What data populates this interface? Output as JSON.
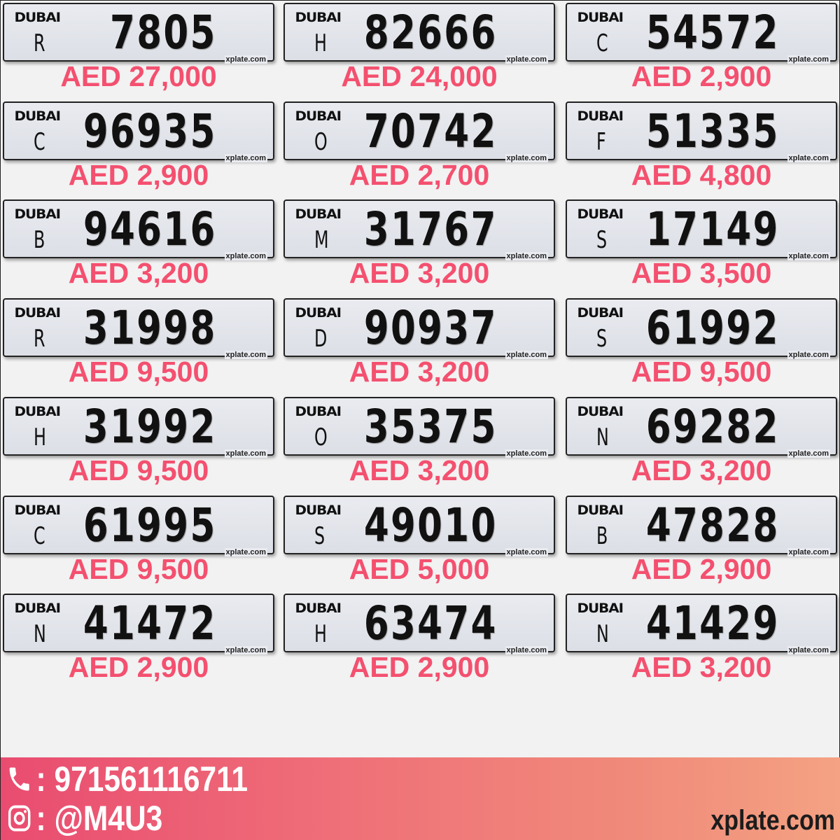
{
  "plates": [
    {
      "emirate": "DUBAI",
      "code": "R",
      "number": "7805",
      "site": "xplate.com",
      "price": "AED 27,000"
    },
    {
      "emirate": "DUBAI",
      "code": "H",
      "number": "82666",
      "site": "xplate.com",
      "price": "AED 24,000"
    },
    {
      "emirate": "DUBAI",
      "code": "C",
      "number": "54572",
      "site": "xplate.com",
      "price": "AED 2,900"
    },
    {
      "emirate": "DUBAI",
      "code": "C",
      "number": "96935",
      "site": "xplate.com",
      "price": "AED 2,900"
    },
    {
      "emirate": "DUBAI",
      "code": "O",
      "number": "70742",
      "site": "xplate.com",
      "price": "AED 2,700"
    },
    {
      "emirate": "DUBAI",
      "code": "F",
      "number": "51335",
      "site": "xplate.com",
      "price": "AED 4,800"
    },
    {
      "emirate": "DUBAI",
      "code": "B",
      "number": "94616",
      "site": "xplate.com",
      "price": "AED 3,200"
    },
    {
      "emirate": "DUBAI",
      "code": "M",
      "number": "31767",
      "site": "xplate.com",
      "price": "AED 3,200"
    },
    {
      "emirate": "DUBAI",
      "code": "S",
      "number": "17149",
      "site": "xplate.com",
      "price": "AED 3,500"
    },
    {
      "emirate": "DUBAI",
      "code": "R",
      "number": "31998",
      "site": "xplate.com",
      "price": "AED 9,500"
    },
    {
      "emirate": "DUBAI",
      "code": "D",
      "number": "90937",
      "site": "xplate.com",
      "price": "AED 3,200"
    },
    {
      "emirate": "DUBAI",
      "code": "S",
      "number": "61992",
      "site": "xplate.com",
      "price": "AED 9,500"
    },
    {
      "emirate": "DUBAI",
      "code": "H",
      "number": "31992",
      "site": "xplate.com",
      "price": "AED 9,500"
    },
    {
      "emirate": "DUBAI",
      "code": "O",
      "number": "35375",
      "site": "xplate.com",
      "price": "AED 3,200"
    },
    {
      "emirate": "DUBAI",
      "code": "N",
      "number": "69282",
      "site": "xplate.com",
      "price": "AED 3,200"
    },
    {
      "emirate": "DUBAI",
      "code": "C",
      "number": "61995",
      "site": "xplate.com",
      "price": "AED 9,500"
    },
    {
      "emirate": "DUBAI",
      "code": "S",
      "number": "49010",
      "site": "xplate.com",
      "price": "AED 5,000"
    },
    {
      "emirate": "DUBAI",
      "code": "B",
      "number": "47828",
      "site": "xplate.com",
      "price": "AED 2,900"
    },
    {
      "emirate": "DUBAI",
      "code": "N",
      "number": "41472",
      "site": "xplate.com",
      "price": "AED 2,900"
    },
    {
      "emirate": "DUBAI",
      "code": "H",
      "number": "63474",
      "site": "xplate.com",
      "price": "AED 2,900"
    },
    {
      "emirate": "DUBAI",
      "code": "N",
      "number": "41429",
      "site": "xplate.com",
      "price": "AED 3,200"
    }
  ],
  "footer": {
    "phone": ": 971561116711",
    "instagram": ": @M4U3",
    "brand": "xplate.com",
    "phone_icon": "phone-icon",
    "instagram_icon": "instagram-icon"
  },
  "colors": {
    "price": "#f4506f",
    "footer_start": "#e94c70",
    "footer_end": "#f4a283"
  }
}
